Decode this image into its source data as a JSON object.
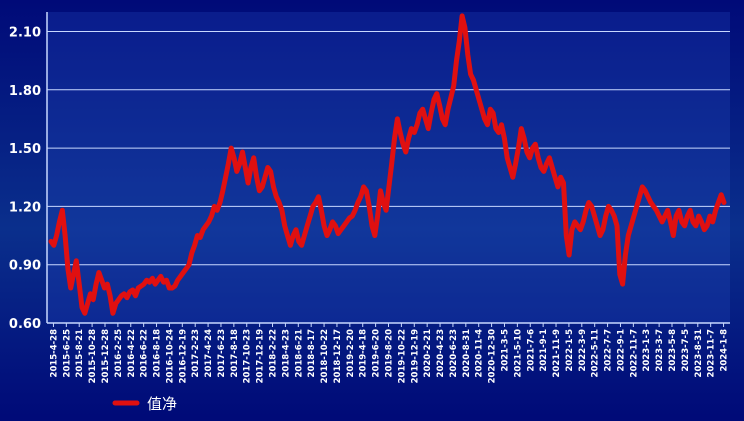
{
  "chart_data": {
    "type": "line",
    "title": "",
    "xlabel": "",
    "ylabel": "",
    "ylim": [
      0.6,
      2.2
    ],
    "yticks": [
      "0.60",
      "0.90",
      "1.20",
      "1.50",
      "1.80",
      "2.10"
    ],
    "grid": true,
    "legend_position": "bottom-left",
    "colors": {
      "line": "#e01010",
      "grid": "#c8d8ff",
      "axis": "#c8d8ff",
      "text": "#ffffff"
    },
    "series": [
      {
        "name": "值净",
        "values": [
          1.02,
          1.0,
          1.05,
          1.12,
          1.18,
          1.05,
          0.88,
          0.78,
          0.85,
          0.92,
          0.8,
          0.68,
          0.65,
          0.7,
          0.75,
          0.72,
          0.8,
          0.86,
          0.82,
          0.78,
          0.8,
          0.74,
          0.65,
          0.7,
          0.72,
          0.74,
          0.75,
          0.73,
          0.76,
          0.77,
          0.74,
          0.78,
          0.79,
          0.8,
          0.82,
          0.81,
          0.83,
          0.8,
          0.82,
          0.84,
          0.81,
          0.82,
          0.78,
          0.78,
          0.79,
          0.82,
          0.84,
          0.86,
          0.88,
          0.9,
          0.96,
          1.0,
          1.05,
          1.04,
          1.08,
          1.1,
          1.12,
          1.15,
          1.2,
          1.18,
          1.22,
          1.28,
          1.35,
          1.42,
          1.5,
          1.45,
          1.38,
          1.42,
          1.48,
          1.4,
          1.32,
          1.4,
          1.45,
          1.35,
          1.28,
          1.3,
          1.35,
          1.4,
          1.38,
          1.3,
          1.25,
          1.22,
          1.18,
          1.1,
          1.05,
          1.0,
          1.05,
          1.08,
          1.02,
          1.0,
          1.05,
          1.1,
          1.15,
          1.2,
          1.22,
          1.25,
          1.18,
          1.1,
          1.05,
          1.08,
          1.12,
          1.1,
          1.06,
          1.08,
          1.1,
          1.12,
          1.14,
          1.15,
          1.18,
          1.22,
          1.25,
          1.3,
          1.28,
          1.2,
          1.1,
          1.05,
          1.15,
          1.28,
          1.22,
          1.18,
          1.3,
          1.42,
          1.55,
          1.65,
          1.58,
          1.52,
          1.48,
          1.55,
          1.6,
          1.58,
          1.62,
          1.68,
          1.7,
          1.65,
          1.6,
          1.68,
          1.75,
          1.78,
          1.72,
          1.65,
          1.62,
          1.7,
          1.76,
          1.82,
          1.95,
          2.05,
          2.18,
          2.12,
          1.98,
          1.88,
          1.85,
          1.8,
          1.75,
          1.7,
          1.65,
          1.62,
          1.7,
          1.68,
          1.6,
          1.58,
          1.62,
          1.55,
          1.45,
          1.4,
          1.35,
          1.42,
          1.5,
          1.6,
          1.55,
          1.48,
          1.45,
          1.5,
          1.52,
          1.45,
          1.4,
          1.38,
          1.42,
          1.45,
          1.4,
          1.35,
          1.3,
          1.35,
          1.32,
          1.05,
          0.95,
          1.08,
          1.12,
          1.1,
          1.08,
          1.12,
          1.18,
          1.22,
          1.2,
          1.15,
          1.1,
          1.05,
          1.08,
          1.15,
          1.2,
          1.18,
          1.15,
          1.1,
          0.85,
          0.8,
          0.95,
          1.05,
          1.1,
          1.15,
          1.2,
          1.25,
          1.3,
          1.28,
          1.25,
          1.22,
          1.2,
          1.18,
          1.15,
          1.12,
          1.15,
          1.18,
          1.12,
          1.05,
          1.15,
          1.18,
          1.12,
          1.1,
          1.15,
          1.18,
          1.12,
          1.1,
          1.15,
          1.12,
          1.08,
          1.1,
          1.15,
          1.12,
          1.18,
          1.22,
          1.26,
          1.22
        ]
      }
    ],
    "xticks": [
      "2015-4-28",
      "2015-6-25",
      "2015-8-21",
      "2015-10-28",
      "2015-12-28",
      "2016-2-25",
      "2016-4-22",
      "2016-6-22",
      "2016-8-18",
      "2016-10-24",
      "2016-12-19",
      "2017-2-23",
      "2017-4-24",
      "2017-6-23",
      "2017-8-18",
      "2017-10-23",
      "2017-12-19",
      "2018-2-22",
      "2018-4-23",
      "2018-6-21",
      "2018-8-17",
      "2018-10-22",
      "2018-12-17",
      "2019-2-20",
      "2019-4-18",
      "2019-6-20",
      "2019-8-20",
      "2019-10-22",
      "2019-12-19",
      "2020-2-21",
      "2020-4-23",
      "2020-6-23",
      "2020-8-31",
      "2020-11-4",
      "2020-12-30",
      "2021-3-5",
      "2021-5-10",
      "2021-7-6",
      "2021-9-1",
      "2021-11-9",
      "2022-1-5",
      "2022-3-9",
      "2022-5-11",
      "2022-7-7",
      "2022-9-1",
      "2022-11-7",
      "2023-1-3",
      "2023-3-7",
      "2023-5-8",
      "2023-7-5",
      "2023-8-31",
      "2023-11-7",
      "2024-1-8"
    ]
  }
}
